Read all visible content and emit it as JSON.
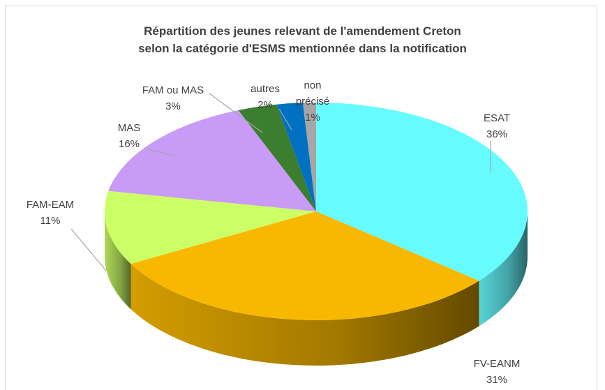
{
  "chart_data": {
    "type": "pie3d",
    "title": [
      "Répartition des jeunes relevant de l'amendement Creton",
      "selon la catégorie d'ESMS mentionnée dans la notification"
    ],
    "categories": [
      "ESAT",
      "FV-EANM",
      "FAM-EAM",
      "MAS",
      "FAM ou MAS",
      "autres",
      "non précisé"
    ],
    "values": [
      36,
      31,
      11,
      16,
      3,
      2,
      1
    ],
    "value_labels": [
      "36%",
      "31%",
      "11%",
      "16%",
      "3%",
      "2%",
      "1%"
    ],
    "colors": [
      "#66fbff",
      "#f9b800",
      "#ccff66",
      "#c89bf7",
      "#3b7e2f",
      "#0070c0",
      "#a6a6a6"
    ]
  }
}
